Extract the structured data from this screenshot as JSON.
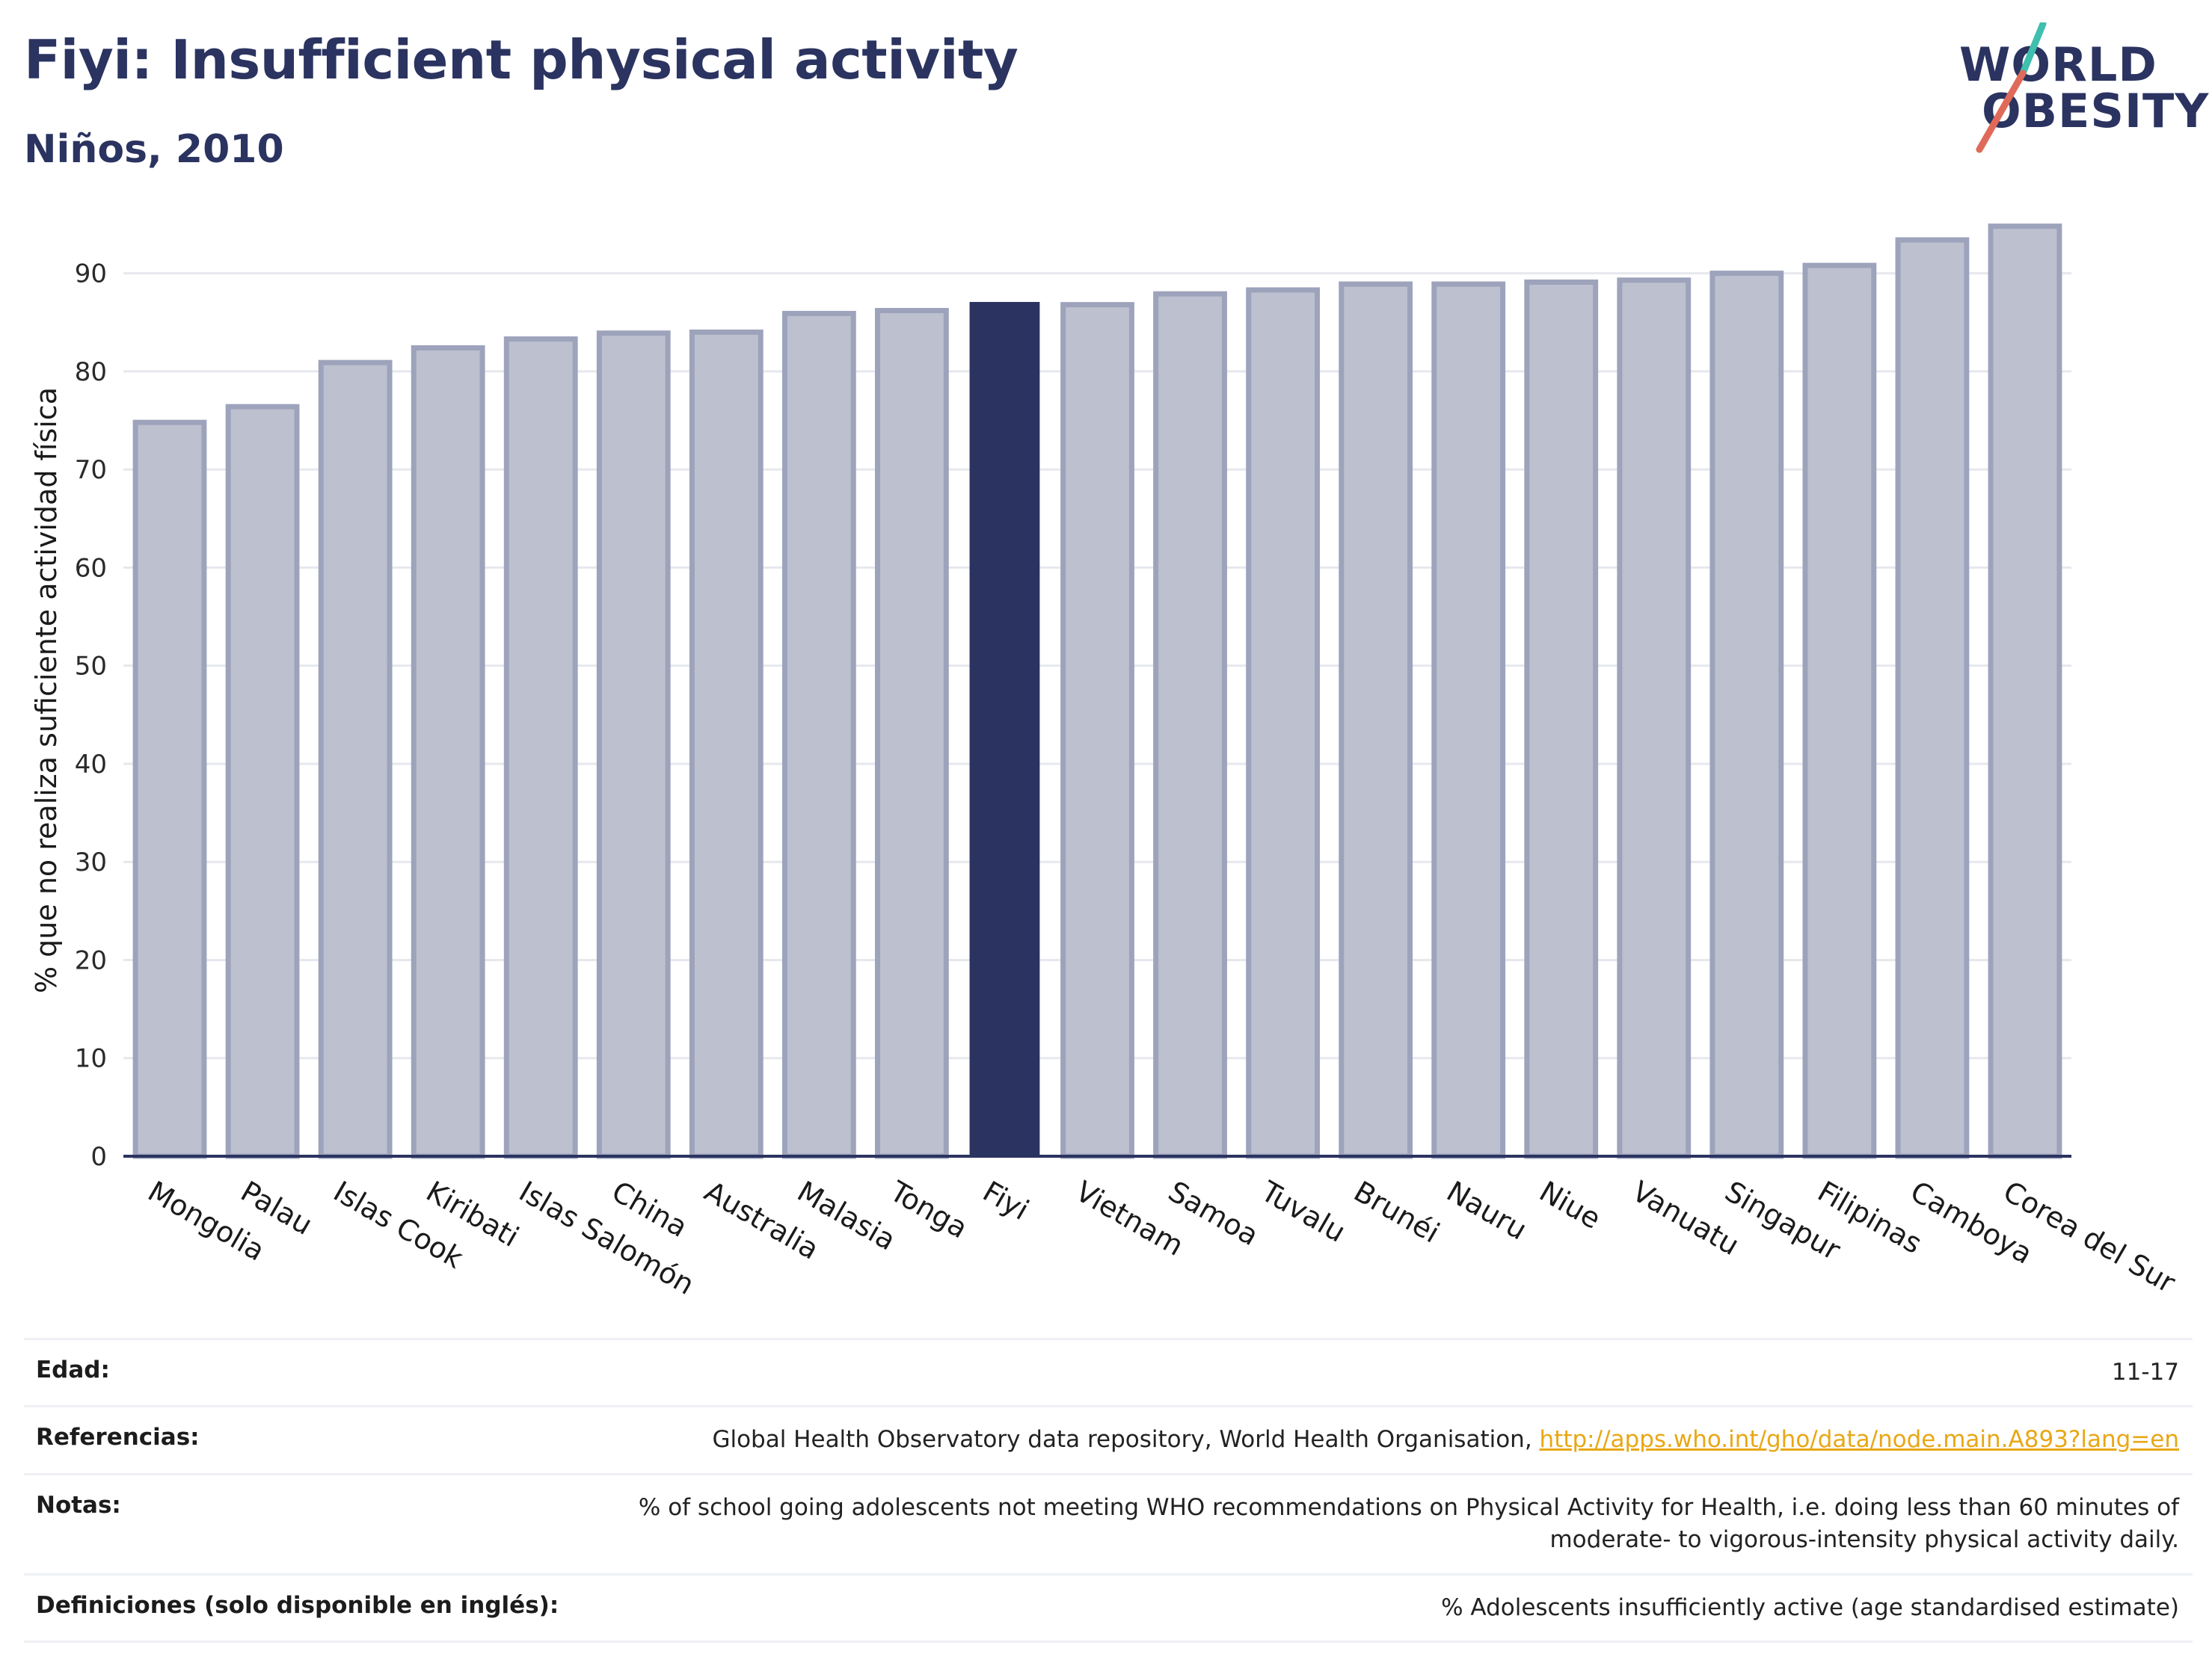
{
  "header": {
    "title": "Fiyi: Insufficient physical activity",
    "subtitle": "Niños, 2010"
  },
  "logo": {
    "line1": "WORLD",
    "line2": "OBESITY",
    "colors": {
      "text": "#2b3360",
      "slash_top": "#3fbfad",
      "slash_bottom": "#e06a5a"
    }
  },
  "chart_data": {
    "type": "bar",
    "title": "Fiyi: Insufficient physical activity",
    "subtitle": "Niños, 2010",
    "xlabel": "",
    "ylabel": "% que no realiza suficiente actividad física",
    "ylim": [
      0,
      95
    ],
    "yticks": [
      0,
      10,
      20,
      30,
      40,
      50,
      60,
      70,
      80,
      90
    ],
    "grid": true,
    "legend": "none",
    "highlight": "Fiyi",
    "colors": {
      "bar": "#bcc0cf",
      "bar_edge": "#9ea3bc",
      "highlight": "#2b3360",
      "grid": "#e6e8ee",
      "axis": "#2b3360"
    },
    "categories": [
      "Mongolia",
      "Palau",
      "Islas Cook",
      "Kiribati",
      "Islas Salomón",
      "China",
      "Australia",
      "Malasia",
      "Tonga",
      "Fiyi",
      "Vietnam",
      "Samoa",
      "Tuvalu",
      "Brunéi",
      "Nauru",
      "Niue",
      "Vanuatu",
      "Singapur",
      "Filipinas",
      "Camboya",
      "Corea del Sur"
    ],
    "values": [
      74.8,
      76.4,
      80.9,
      82.4,
      83.3,
      83.9,
      84.0,
      85.9,
      86.2,
      87.0,
      86.8,
      87.9,
      88.3,
      88.9,
      88.9,
      89.1,
      89.3,
      90.0,
      90.8,
      93.4,
      94.8
    ]
  },
  "details": [
    {
      "label": "Edad:",
      "value": "11-17"
    },
    {
      "label": "Referencias:",
      "value": "Global Health Observatory data repository, World Health Organisation,",
      "link": "http://apps.who.int/gho/data/node.main.A893?lang=en"
    },
    {
      "label": "Notas:",
      "value": "% of school going adolescents not meeting WHO recommendations on Physical Activity for Health, i.e. doing less than 60 minutes of moderate- to vigorous-intensity physical activity daily."
    },
    {
      "label": "Definiciones (solo disponible en inglés):",
      "value": "% Adolescents insufficiently active (age standardised estimate)"
    }
  ]
}
